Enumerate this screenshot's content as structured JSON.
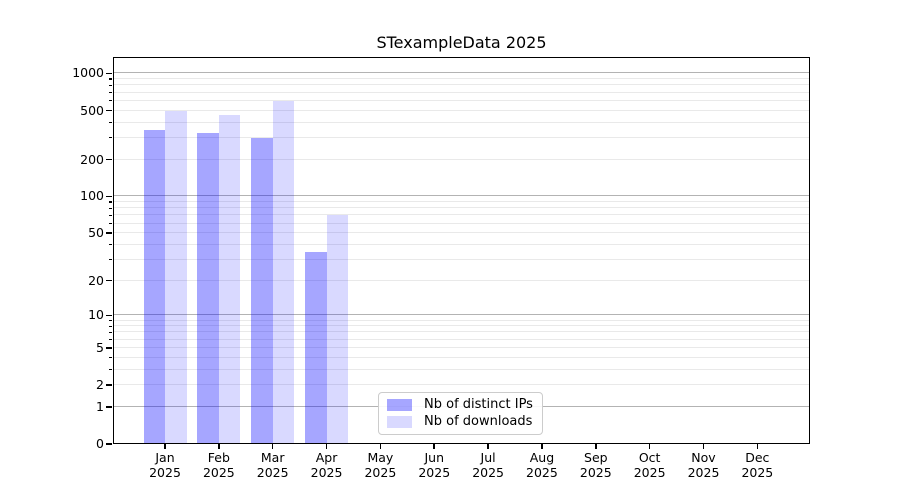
{
  "figure": {
    "title": "STexampleData 2025",
    "background_color": "#ffffff"
  },
  "chart_data": {
    "type": "bar",
    "title": "STexampleData 2025",
    "x_months": [
      "Jan",
      "Feb",
      "Mar",
      "Apr",
      "May",
      "Jun",
      "Jul",
      "Aug",
      "Sep",
      "Oct",
      "Nov",
      "Dec"
    ],
    "x_year": "2025",
    "series": [
      {
        "name": "Nb of distinct IPs",
        "color": "#0000ff",
        "alpha": 0.35,
        "solid_color": "#a6a6ff",
        "values": [
          350,
          330,
          300,
          35,
          null,
          null,
          null,
          null,
          null,
          null,
          null,
          null
        ]
      },
      {
        "name": "Nb of downloads",
        "color": "#0000ff",
        "alpha": 0.15,
        "solid_color": "#d9d9ff",
        "values": [
          500,
          460,
          600,
          70,
          null,
          null,
          null,
          null,
          null,
          null,
          null,
          null
        ]
      }
    ],
    "yscale": "log1p",
    "ylim": [
      0,
      1360
    ],
    "yticks_labeled": [
      0,
      1,
      2,
      5,
      10,
      20,
      50,
      100,
      200,
      500,
      1000
    ],
    "yticks_major_grid": [
      1,
      10,
      100,
      1000
    ],
    "yticks_minor_grid": [
      2,
      3,
      4,
      5,
      6,
      7,
      8,
      9,
      20,
      30,
      40,
      50,
      60,
      70,
      80,
      90,
      200,
      300,
      400,
      500,
      600,
      700,
      800,
      900
    ],
    "grid": "horizontal",
    "legend": {
      "location": "inside-lower-center",
      "entries": [
        "Nb of distinct IPs",
        "Nb of downloads"
      ]
    },
    "colors": {
      "major_grid": "#b3b3b3",
      "minor_grid": "#e9e9e9",
      "axis": "#000000",
      "text": "#000000",
      "legend_border": "#cccccc",
      "legend_background": "#ffffff"
    }
  }
}
